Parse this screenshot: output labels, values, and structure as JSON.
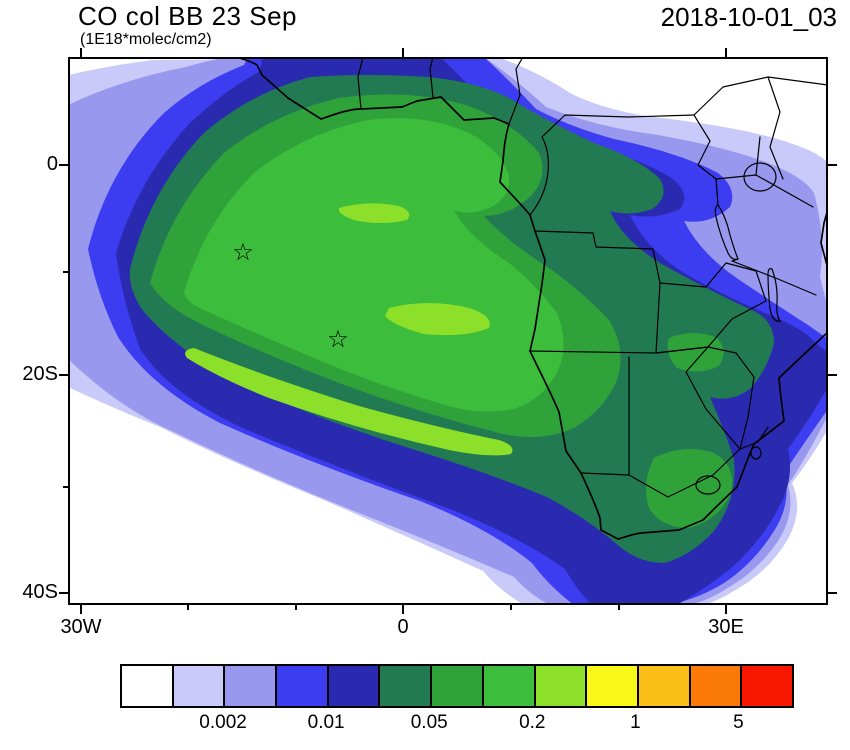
{
  "header": {
    "title": "CO col BB 23 Sep",
    "subtitle": "(1E18*molec/cm2)",
    "timestamp": "2018-10-01_03"
  },
  "axes": {
    "y_ticks": [
      "0",
      "20S",
      "40S"
    ],
    "x_ticks": [
      "30W",
      "0",
      "30E"
    ]
  },
  "map": {
    "marker_glyph": "☆",
    "region": "South Atlantic and southern Africa"
  },
  "colorbar": {
    "colors": [
      "#ffffff",
      "#cacafa",
      "#9898ee",
      "#3c3cf0",
      "#2a2ab0",
      "#217a52",
      "#2fa33a",
      "#3cbe3c",
      "#8ce02a",
      "#f8f818",
      "#fcbe18",
      "#fc7a0a",
      "#f81800"
    ],
    "labels": [
      {
        "text": "0.002",
        "boundary": 2
      },
      {
        "text": "0.01",
        "boundary": 4
      },
      {
        "text": "0.05",
        "boundary": 6
      },
      {
        "text": "0.2",
        "boundary": 8
      },
      {
        "text": "1",
        "boundary": 10
      },
      {
        "text": "5",
        "boundary": 12
      }
    ]
  },
  "chart_data": {
    "type": "heatmap",
    "title": "CO col BB 23 Sep",
    "units": "1E18*molec/cm2",
    "timestamp": "2018-10-01_03",
    "x_tick_labels": [
      "30W",
      "0",
      "30E"
    ],
    "y_tick_labels": [
      "0",
      "20S",
      "40S"
    ],
    "lon_range_deg": [
      -31,
      39.5
    ],
    "lat_range_deg": [
      -41,
      10
    ],
    "contour_levels": [
      0.001,
      0.002,
      0.005,
      0.01,
      0.02,
      0.05,
      0.1,
      0.2,
      0.5,
      1,
      2,
      5
    ],
    "labeled_levels": [
      "0.002",
      "0.01",
      "0.05",
      "0.2",
      "1",
      "5"
    ],
    "palette": [
      "#ffffff",
      "#cacafa",
      "#9898ee",
      "#3c3cf0",
      "#2a2ab0",
      "#217a52",
      "#2fa33a",
      "#3cbe3c",
      "#8ce02a",
      "#f8f818",
      "#fcbe18",
      "#fc7a0a",
      "#f81800"
    ],
    "markers": [
      {
        "type": "star",
        "lon": -15,
        "lat": -8
      },
      {
        "type": "star",
        "lon": -6,
        "lat": -16
      }
    ],
    "description": "Filled-contour map of biomass-burning CO column over the South Atlantic and southern Africa. A large plume (0.05-1 range, green shades) is centered offshore between roughly 25W-5E and 5S-25S, extending east over Angola, Zambia, Zimbabwe, Mozambique and eastern South Africa (blue/teal shades), with the lightest contours (lavender) spreading across most of the basin."
  }
}
